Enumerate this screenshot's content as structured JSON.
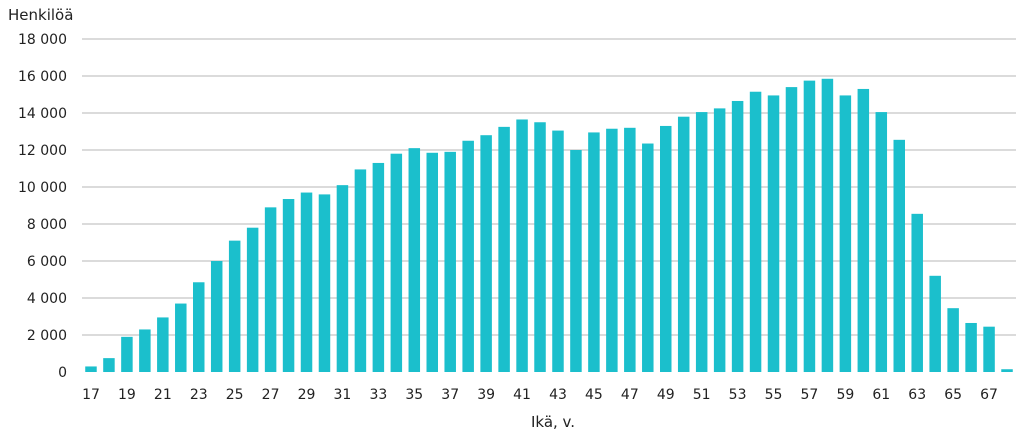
{
  "chart_data": {
    "type": "bar",
    "ylabel": "Henkilöä",
    "xlabel": "Ikä, v.",
    "ylim": [
      0,
      18000
    ],
    "yticks": [
      0,
      2000,
      4000,
      6000,
      8000,
      10000,
      12000,
      14000,
      16000,
      18000
    ],
    "ytick_labels": [
      "0",
      "2 000",
      "4 000",
      "6 000",
      "8 000",
      "10 000",
      "12 000",
      "14 000",
      "16 000",
      "18 000"
    ],
    "categories": [
      17,
      18,
      19,
      20,
      21,
      22,
      23,
      24,
      25,
      26,
      27,
      28,
      29,
      30,
      31,
      32,
      33,
      34,
      35,
      36,
      37,
      38,
      39,
      40,
      41,
      42,
      43,
      44,
      45,
      46,
      47,
      48,
      49,
      50,
      51,
      52,
      53,
      54,
      55,
      56,
      57,
      58,
      59,
      60,
      61,
      62,
      63,
      64,
      65,
      66,
      67,
      68
    ],
    "xtick_labels": [
      "17",
      "19",
      "21",
      "23",
      "25",
      "27",
      "29",
      "31",
      "33",
      "35",
      "37",
      "39",
      "41",
      "43",
      "45",
      "47",
      "49",
      "51",
      "53",
      "55",
      "57",
      "59",
      "61",
      "63",
      "65",
      "67"
    ],
    "values": [
      300,
      750,
      1900,
      2300,
      2950,
      3700,
      4850,
      6000,
      7100,
      7800,
      8900,
      9350,
      9700,
      9600,
      10100,
      10950,
      11300,
      11800,
      12100,
      11850,
      11900,
      12500,
      12800,
      13250,
      13650,
      13500,
      13050,
      12000,
      12950,
      13150,
      13200,
      12350,
      13300,
      13800,
      14050,
      14250,
      14650,
      15150,
      14950,
      15400,
      15750,
      15850,
      14950,
      15300,
      14050,
      12550,
      8550,
      5200,
      3450,
      2650,
      2450,
      150
    ],
    "grid": true,
    "bar_color": "#1bbfcc",
    "grid_color": "#b7b7b7",
    "text_color": "#222222"
  }
}
